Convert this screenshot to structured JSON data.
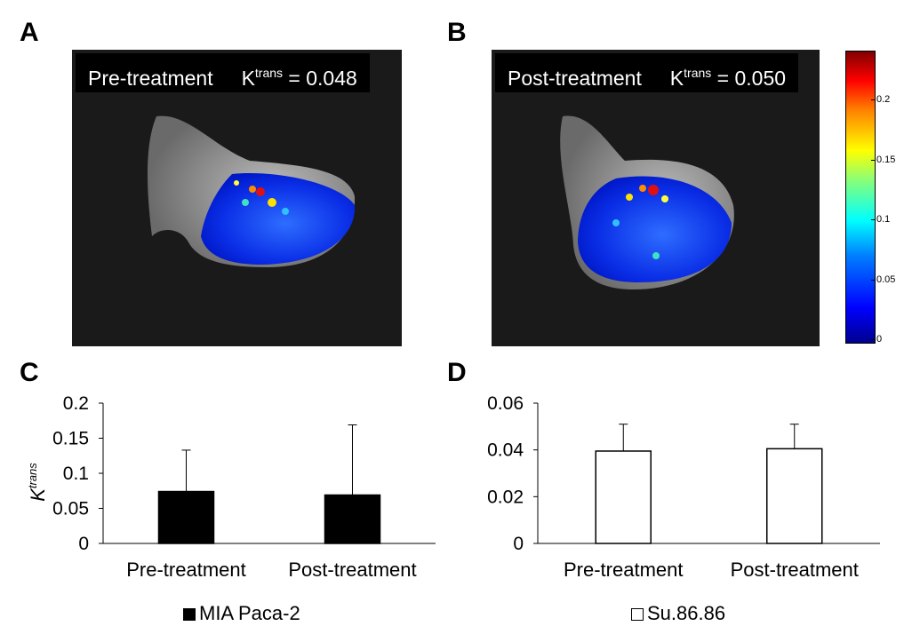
{
  "panels": {
    "a": {
      "letter": "A",
      "label": "Pre-treatment",
      "k_symbol": "K",
      "k_sup": "trans",
      "k_value": "= 0.048"
    },
    "b": {
      "letter": "B",
      "label": "Post-treatment",
      "k_symbol": "K",
      "k_sup": "trans",
      "k_value": "= 0.050"
    },
    "c": {
      "letter": "C"
    },
    "d": {
      "letter": "D"
    }
  },
  "colorbar": {
    "ticks": [
      "0.2",
      "0.15",
      "0.1",
      "0.05",
      "0"
    ],
    "colors": [
      "#00008f",
      "#0000ff",
      "#0080ff",
      "#00ffff",
      "#80ff80",
      "#ffff00",
      "#ff8000",
      "#ff0000",
      "#800000"
    ]
  },
  "chart_data": [
    {
      "type": "bar",
      "panel": "C",
      "categories": [
        "Pre-treatment",
        "Post-treatment"
      ],
      "series": [
        {
          "name": "MIA Paca-2",
          "values": [
            0.074,
            0.069
          ],
          "errors": [
            0.059,
            0.1
          ],
          "color": "#000000"
        }
      ],
      "ylabel": "K",
      "ylabel_sup": "trans",
      "ylim": [
        0,
        0.2
      ],
      "yticks": [
        0,
        0.05,
        0.1,
        0.15,
        0.2
      ],
      "ytick_labels": [
        "0",
        "0.05",
        "0.1",
        "0.15",
        "0.2"
      ],
      "legend": "MIA Paca-2"
    },
    {
      "type": "bar",
      "panel": "D",
      "categories": [
        "Pre-treatment",
        "Post-treatment"
      ],
      "series": [
        {
          "name": "Su.86.86",
          "values": [
            0.0395,
            0.0405
          ],
          "errors": [
            0.0115,
            0.0105
          ],
          "color": "#ffffff"
        }
      ],
      "ylabel": "",
      "ylim": [
        0,
        0.06
      ],
      "yticks": [
        0,
        0.02,
        0.04,
        0.06
      ],
      "ytick_labels": [
        "0",
        "0.02",
        "0.04",
        "0.06"
      ],
      "legend": "Su.86.86"
    }
  ]
}
